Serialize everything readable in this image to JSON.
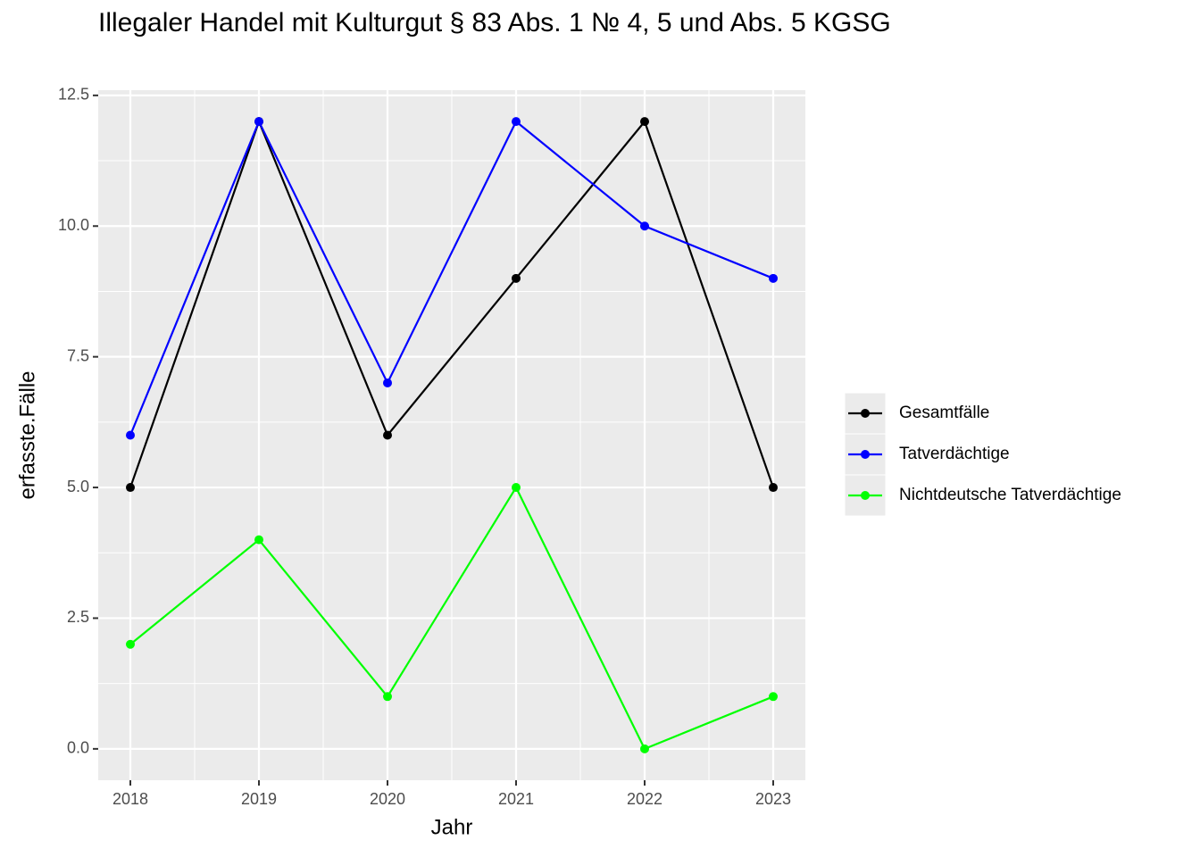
{
  "chart_data": {
    "type": "line",
    "title": "Illegaler Handel mit Kulturgut § 83 Abs. 1 № 4, 5 und Abs. 5 KGSG",
    "x_label": "Jahr",
    "y_label": "erfasste.Fälle",
    "x": [
      2018,
      2019,
      2020,
      2021,
      2022,
      2023
    ],
    "series": [
      {
        "name": "Gesamtfälle",
        "color": "#000000",
        "values": [
          5,
          12,
          6,
          9,
          12,
          5
        ]
      },
      {
        "name": "Tatverdächtige",
        "color": "#0000ff",
        "values": [
          6,
          12,
          7,
          12,
          10,
          9
        ]
      },
      {
        "name": "Nichtdeutsche Tatverdächtige",
        "color": "#00ff00",
        "values": [
          2,
          4,
          1,
          5,
          0,
          1
        ]
      }
    ],
    "xlim": [
      2017.75,
      2023.25
    ],
    "xticks": [
      2018,
      2019,
      2020,
      2021,
      2022,
      2023
    ],
    "ylim": [
      -0.6,
      12.6
    ],
    "yticks": [
      {
        "value": 0,
        "label": "0.0"
      },
      2.5,
      {
        "value": 5,
        "label": "5.0"
      },
      7.5,
      {
        "value": 10,
        "label": "10.0"
      },
      12.5
    ],
    "grid": true,
    "legend_position": "right"
  }
}
